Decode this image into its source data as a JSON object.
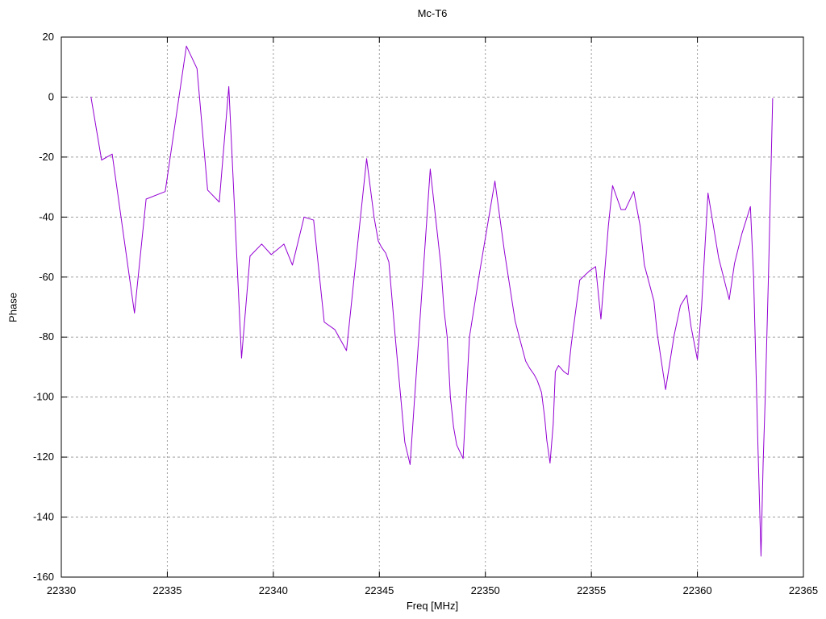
{
  "chart_data": {
    "type": "line",
    "title": "Mc-T6",
    "xlabel": "Freq [MHz]",
    "ylabel": "Phase",
    "xlim": [
      22330,
      22365
    ],
    "ylim": [
      -160,
      20
    ],
    "x_ticks": [
      22330,
      22335,
      22340,
      22345,
      22350,
      22355,
      22360,
      22365
    ],
    "y_ticks": [
      20,
      0,
      -20,
      -40,
      -60,
      -80,
      -100,
      -120,
      -140,
      -160
    ],
    "grid": true,
    "legend_position": "none",
    "line_color": "#9400d3",
    "border_color": "#000000",
    "grid_color": "#9e9e9e",
    "background_color": "#ffffff",
    "series": [
      {
        "name": "Phase",
        "points": [
          [
            22331.4,
            0
          ],
          [
            22331.9,
            -21
          ],
          [
            22332.4,
            -19
          ],
          [
            22333.45,
            -72
          ],
          [
            22334.0,
            -34
          ],
          [
            22334.9,
            -31.5
          ],
          [
            22335.9,
            17
          ],
          [
            22336.4,
            9.5
          ],
          [
            22336.9,
            -31
          ],
          [
            22337.45,
            -35
          ],
          [
            22337.9,
            3.5
          ],
          [
            22338.5,
            -87
          ],
          [
            22338.9,
            -53
          ],
          [
            22339.45,
            -49
          ],
          [
            22339.9,
            -52.5
          ],
          [
            22340.5,
            -49
          ],
          [
            22340.9,
            -56
          ],
          [
            22341.45,
            -40
          ],
          [
            22341.9,
            -41
          ],
          [
            22342.4,
            -75
          ],
          [
            22342.9,
            -77.5
          ],
          [
            22343.45,
            -84.5
          ],
          [
            22344.4,
            -20.5
          ],
          [
            22344.75,
            -40
          ],
          [
            22344.95,
            -48
          ],
          [
            22345.1,
            -50
          ],
          [
            22345.3,
            -52
          ],
          [
            22345.45,
            -55
          ],
          [
            22345.75,
            -80
          ],
          [
            22346.2,
            -115
          ],
          [
            22346.45,
            -122.5
          ],
          [
            22347.4,
            -24
          ],
          [
            22347.65,
            -40
          ],
          [
            22347.9,
            -56
          ],
          [
            22348.05,
            -71
          ],
          [
            22348.2,
            -80
          ],
          [
            22348.35,
            -100
          ],
          [
            22348.5,
            -110
          ],
          [
            22348.65,
            -116
          ],
          [
            22348.95,
            -120.5
          ],
          [
            22349.25,
            -80
          ],
          [
            22349.75,
            -57.5
          ],
          [
            22350.45,
            -28
          ],
          [
            22350.9,
            -51.5
          ],
          [
            22351.4,
            -74.5
          ],
          [
            22351.6,
            -80
          ],
          [
            22351.9,
            -88
          ],
          [
            22352.1,
            -90.5
          ],
          [
            22352.3,
            -92.5
          ],
          [
            22352.45,
            -94.5
          ],
          [
            22352.65,
            -98.5
          ],
          [
            22352.8,
            -107
          ],
          [
            22352.9,
            -114.5
          ],
          [
            22353.05,
            -122
          ],
          [
            22353.2,
            -109
          ],
          [
            22353.3,
            -91.5
          ],
          [
            22353.45,
            -89.5
          ],
          [
            22353.7,
            -91.5
          ],
          [
            22353.9,
            -92.5
          ],
          [
            22354.05,
            -82.5
          ],
          [
            22354.45,
            -61
          ],
          [
            22354.9,
            -58
          ],
          [
            22355.2,
            -56.5
          ],
          [
            22355.45,
            -74
          ],
          [
            22355.8,
            -43
          ],
          [
            22356.0,
            -29.5
          ],
          [
            22356.4,
            -37.5
          ],
          [
            22356.6,
            -37.5
          ],
          [
            22357.0,
            -31.5
          ],
          [
            22357.3,
            -43
          ],
          [
            22357.5,
            -56
          ],
          [
            22357.95,
            -68
          ],
          [
            22358.1,
            -78.5
          ],
          [
            22358.5,
            -97.5
          ],
          [
            22358.9,
            -79.5
          ],
          [
            22359.2,
            -69.5
          ],
          [
            22359.5,
            -66
          ],
          [
            22359.7,
            -76.5
          ],
          [
            22360.0,
            -87.5
          ],
          [
            22360.2,
            -69.5
          ],
          [
            22360.5,
            -32
          ],
          [
            22361.0,
            -53.5
          ],
          [
            22361.5,
            -67.5
          ],
          [
            22361.75,
            -55.5
          ],
          [
            22362.1,
            -45.5
          ],
          [
            22362.5,
            -36.5
          ],
          [
            22362.65,
            -60
          ],
          [
            22362.75,
            -87
          ],
          [
            22362.85,
            -115
          ],
          [
            22363.0,
            -153
          ],
          [
            22363.1,
            -122
          ],
          [
            22363.2,
            -100
          ],
          [
            22363.35,
            -60
          ],
          [
            22363.55,
            -0.5
          ]
        ]
      }
    ]
  }
}
